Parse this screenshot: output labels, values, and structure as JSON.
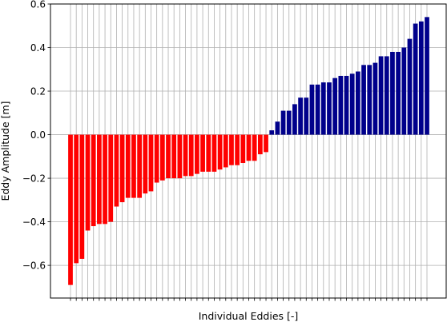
{
  "chart_data": {
    "type": "bar",
    "title": "",
    "xlabel": "Individual Eddies [-]",
    "ylabel": "Eddy Amplitude [m]",
    "ylim": [
      -0.75,
      0.6
    ],
    "yticks": [
      -0.6,
      -0.4,
      -0.2,
      0.0,
      0.2,
      0.4,
      0.6
    ],
    "ytick_labels": [
      "−0.6",
      "−0.4",
      "−0.2",
      "0.0",
      "0.2",
      "0.4",
      "0.6"
    ],
    "grid": true,
    "categories_count": 78,
    "series": [
      {
        "color": "#ff0000",
        "values": [
          -0.69,
          -0.59,
          -0.57,
          -0.44,
          -0.42,
          -0.41,
          -0.41,
          -0.4,
          -0.33,
          -0.31,
          -0.29,
          -0.29,
          -0.29,
          -0.27,
          -0.26,
          -0.22,
          -0.21,
          -0.2,
          -0.2,
          -0.2,
          -0.19,
          -0.19,
          -0.18,
          -0.17,
          -0.17,
          -0.17,
          -0.16,
          -0.15,
          -0.14,
          -0.14,
          -0.13,
          -0.12,
          -0.12,
          -0.09,
          -0.08
        ]
      },
      {
        "color": "#00008b",
        "values": [
          0.02,
          0.06,
          0.11,
          0.11,
          0.14,
          0.17,
          0.17,
          0.23,
          0.23,
          0.24,
          0.24,
          0.26,
          0.27,
          0.27,
          0.28,
          0.29,
          0.32,
          0.32,
          0.33,
          0.36,
          0.36,
          0.38,
          0.38,
          0.4,
          0.44,
          0.51,
          0.52,
          0.54
        ]
      }
    ]
  }
}
